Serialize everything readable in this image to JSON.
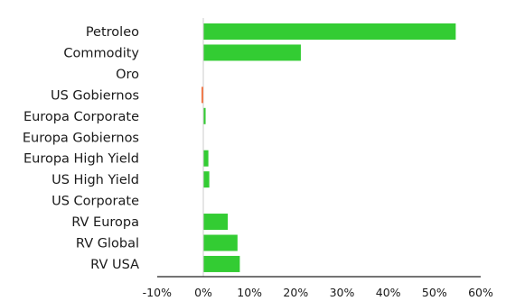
{
  "chart_data": {
    "type": "bar",
    "orientation": "horizontal",
    "title": "",
    "xlabel": "",
    "ylabel": "",
    "categories": [
      "Petroleo",
      "Commodity",
      "Oro",
      "US Gobiernos",
      "Europa Corporate",
      "Europa Gobiernos",
      "Europa High Yield",
      "US High Yield",
      "US Corporate",
      "RV Europa",
      "RV Global",
      "RV USA"
    ],
    "values": [
      54.5,
      21.0,
      0,
      -0.4,
      0.4,
      0,
      1.0,
      1.2,
      0,
      5.2,
      7.3,
      7.8
    ],
    "xlim": [
      -10,
      60
    ],
    "xticks": [
      "-10%",
      "0%",
      "10%",
      "20%",
      "30%",
      "40%",
      "50%",
      "60%"
    ],
    "grid": false,
    "colors": {
      "positive": "#33cc33",
      "negative": "#f07c4f",
      "axis": "#222222",
      "zero_line": "#cccccc"
    }
  }
}
